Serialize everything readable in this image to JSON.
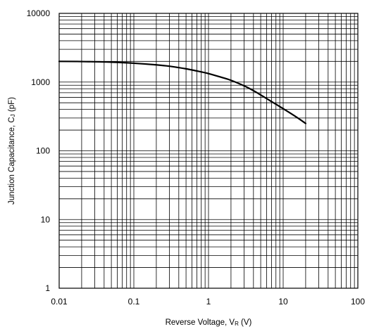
{
  "chart_data": {
    "type": "line",
    "x_scale": "log",
    "y_scale": "log",
    "xlim": [
      0.01,
      100
    ],
    "ylim": [
      1,
      10000
    ],
    "grid": true,
    "x_ticks": [
      "0.01",
      "0.1",
      "1",
      "10",
      "100"
    ],
    "y_ticks": [
      "1",
      "10",
      "100",
      "1000",
      "10000"
    ],
    "xlabel": {
      "main": "Reverse Voltage, V",
      "sub": "R",
      "unit": " (V)"
    },
    "ylabel": {
      "main": "Junction Capacitance, C",
      "sub": "J",
      "unit": " (pF)"
    },
    "series": [
      {
        "x": [
          0.01,
          0.02,
          0.05,
          0.1,
          0.2,
          0.3,
          0.5,
          0.7,
          1.0,
          1.5,
          2.0,
          3.0,
          4.0,
          5.0,
          7.0,
          10.0,
          15.0,
          20.0
        ],
        "y": [
          2000,
          1990,
          1950,
          1880,
          1780,
          1700,
          1560,
          1450,
          1330,
          1170,
          1060,
          880,
          750,
          650,
          520,
          410,
          310,
          250
        ]
      }
    ]
  },
  "colors": {
    "curve": "#000000",
    "grid": "#000000",
    "background": "#ffffff"
  }
}
